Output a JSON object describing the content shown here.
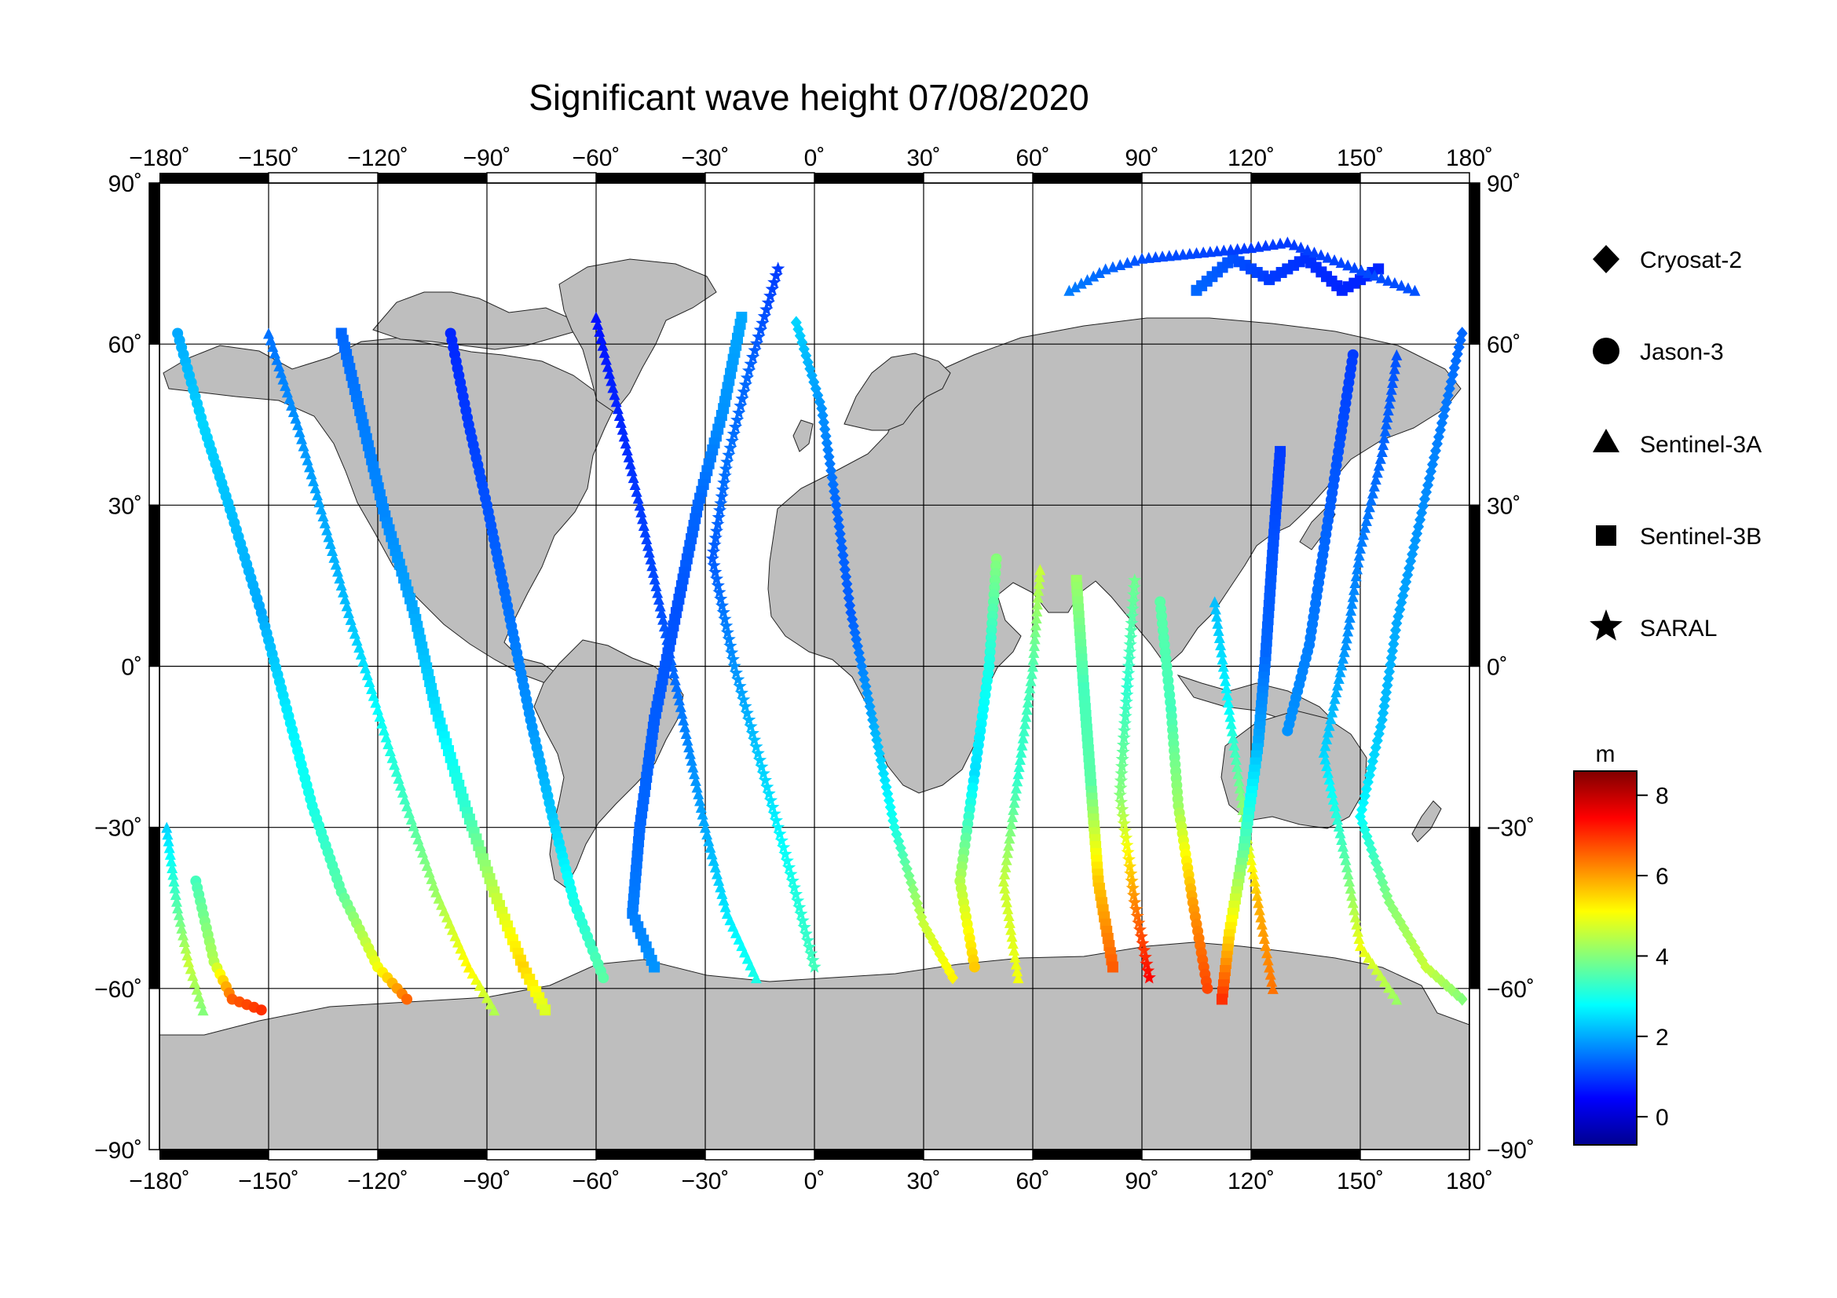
{
  "chart_data": {
    "type": "scatter",
    "title": "Significant wave height 07/08/2020",
    "projection": "equirectangular",
    "xlim": [
      -180,
      180
    ],
    "ylim": [
      -90,
      90
    ],
    "x_ticks": [
      "−180˚",
      "−150˚",
      "−120˚",
      "−90˚",
      "−60˚",
      "−30˚",
      "0˚",
      "30˚",
      "60˚",
      "90˚",
      "120˚",
      "150˚",
      "180˚"
    ],
    "x_tick_values": [
      -180,
      -150,
      -120,
      -90,
      -60,
      -30,
      0,
      30,
      60,
      90,
      120,
      150,
      180
    ],
    "y_ticks": [
      "90˚",
      "60˚",
      "30˚",
      "0˚",
      "−30˚",
      "−60˚",
      "−90˚"
    ],
    "y_tick_values": [
      90,
      60,
      30,
      0,
      -30,
      -60,
      -90
    ],
    "grid": true,
    "land_color": "#bebebe",
    "legend": {
      "placement": "right",
      "entries": [
        {
          "name": "Cryosat-2",
          "marker": "diamond"
        },
        {
          "name": "Jason-3",
          "marker": "circle"
        },
        {
          "name": "Sentinel-3A",
          "marker": "triangle"
        },
        {
          "name": "Sentinel-3B",
          "marker": "square"
        },
        {
          "name": "SARAL",
          "marker": "star"
        }
      ]
    },
    "colorbar": {
      "unit": "m",
      "range": [
        -0.7,
        8.6
      ],
      "ticks": [
        "8",
        "6",
        "4",
        "2",
        "0"
      ],
      "tick_values": [
        8,
        6,
        4,
        2,
        0
      ],
      "colormap": [
        "#00008f",
        "#0000ff",
        "#0080ff",
        "#00ffff",
        "#80ff80",
        "#ffff00",
        "#ff8000",
        "#ff0000",
        "#800000"
      ]
    },
    "tracks": [
      {
        "marker": "circle",
        "points": [
          [
            -175,
            62,
            2.0
          ],
          [
            -168,
            45,
            2.4
          ],
          [
            -160,
            28,
            2.2
          ],
          [
            -152,
            10,
            2.0
          ],
          [
            -145,
            -8,
            2.6
          ],
          [
            -138,
            -26,
            3.0
          ],
          [
            -130,
            -42,
            3.6
          ],
          [
            -120,
            -56,
            5.0
          ],
          [
            -112,
            -62,
            6.5
          ]
        ]
      },
      {
        "marker": "triangle",
        "points": [
          [
            -150,
            62,
            1.5
          ],
          [
            -142,
            45,
            1.8
          ],
          [
            -135,
            28,
            2.0
          ],
          [
            -128,
            10,
            2.2
          ],
          [
            -120,
            -8,
            2.8
          ],
          [
            -112,
            -26,
            3.4
          ],
          [
            -104,
            -42,
            4.2
          ],
          [
            -95,
            -56,
            5.2
          ],
          [
            -88,
            -64,
            4.4
          ]
        ]
      },
      {
        "marker": "square",
        "points": [
          [
            -130,
            62,
            1.4
          ],
          [
            -124,
            45,
            1.6
          ],
          [
            -118,
            28,
            1.7
          ],
          [
            -110,
            10,
            2.0
          ],
          [
            -104,
            -8,
            2.5
          ],
          [
            -96,
            -26,
            3.2
          ],
          [
            -88,
            -42,
            4.5
          ],
          [
            -80,
            -56,
            5.5
          ],
          [
            -74,
            -64,
            4.8
          ]
        ]
      },
      {
        "marker": "circle",
        "points": [
          [
            -100,
            62,
            0.8
          ],
          [
            -95,
            45,
            1.0
          ],
          [
            -90,
            30,
            1.2
          ],
          [
            -84,
            10,
            1.5
          ],
          [
            -78,
            -10,
            1.8
          ],
          [
            -72,
            -28,
            2.3
          ],
          [
            -66,
            -44,
            3.0
          ],
          [
            -58,
            -58,
            3.6
          ]
        ]
      },
      {
        "marker": "triangle",
        "points": [
          [
            -60,
            65,
            0.6
          ],
          [
            -54,
            48,
            0.8
          ],
          [
            -48,
            30,
            1.0
          ],
          [
            -42,
            10,
            1.2
          ],
          [
            -36,
            -10,
            1.6
          ],
          [
            -30,
            -30,
            2.0
          ],
          [
            -24,
            -46,
            2.6
          ],
          [
            -16,
            -58,
            3.0
          ]
        ]
      },
      {
        "marker": "square",
        "points": [
          [
            -20,
            65,
            2.0
          ],
          [
            -25,
            48,
            1.8
          ],
          [
            -32,
            30,
            1.4
          ],
          [
            -38,
            10,
            1.2
          ],
          [
            -44,
            -10,
            1.3
          ],
          [
            -48,
            -30,
            1.4
          ],
          [
            -50,
            -46,
            1.6
          ],
          [
            -44,
            -56,
            1.8
          ]
        ]
      },
      {
        "marker": "star",
        "points": [
          [
            -10,
            74,
            1.0
          ],
          [
            -18,
            55,
            1.4
          ],
          [
            -24,
            38,
            1.5
          ],
          [
            -28,
            20,
            1.3
          ],
          [
            -22,
            0,
            1.8
          ],
          [
            -14,
            -20,
            2.4
          ],
          [
            -6,
            -40,
            3.0
          ],
          [
            0,
            -56,
            3.4
          ]
        ]
      },
      {
        "marker": "diamond",
        "points": [
          [
            -5,
            64,
            2.4
          ],
          [
            2,
            48,
            1.8
          ],
          [
            6,
            30,
            1.4
          ],
          [
            10,
            10,
            1.3
          ],
          [
            16,
            -10,
            2.0
          ],
          [
            22,
            -30,
            3.0
          ],
          [
            30,
            -48,
            4.6
          ],
          [
            38,
            -58,
            5.2
          ]
        ]
      },
      {
        "marker": "circle",
        "points": [
          [
            50,
            20,
            4.0
          ],
          [
            48,
            0,
            3.0
          ],
          [
            44,
            -20,
            2.5
          ],
          [
            40,
            -40,
            4.4
          ],
          [
            44,
            -56,
            5.6
          ]
        ]
      },
      {
        "marker": "triangle",
        "points": [
          [
            62,
            18,
            4.6
          ],
          [
            60,
            0,
            3.5
          ],
          [
            56,
            -20,
            3.2
          ],
          [
            52,
            -40,
            4.6
          ],
          [
            56,
            -58,
            5.0
          ]
        ]
      },
      {
        "marker": "square",
        "points": [
          [
            72,
            16,
            4.2
          ],
          [
            74,
            -4,
            3.4
          ],
          [
            76,
            -22,
            3.6
          ],
          [
            78,
            -40,
            5.6
          ],
          [
            82,
            -56,
            6.6
          ]
        ]
      },
      {
        "marker": "star",
        "points": [
          [
            88,
            16,
            3.8
          ],
          [
            86,
            -4,
            3.2
          ],
          [
            84,
            -24,
            4.0
          ],
          [
            88,
            -44,
            6.2
          ],
          [
            92,
            -58,
            7.4
          ]
        ]
      },
      {
        "marker": "circle",
        "points": [
          [
            95,
            12,
            3.6
          ],
          [
            98,
            -8,
            3.4
          ],
          [
            100,
            -26,
            4.2
          ],
          [
            104,
            -44,
            6.0
          ],
          [
            108,
            -60,
            6.8
          ]
        ]
      },
      {
        "marker": "triangle",
        "points": [
          [
            110,
            12,
            2.2
          ],
          [
            114,
            -8,
            2.8
          ],
          [
            118,
            -28,
            4.2
          ],
          [
            122,
            -44,
            5.8
          ],
          [
            126,
            -60,
            6.4
          ]
        ]
      },
      {
        "marker": "square",
        "points": [
          [
            128,
            40,
            1.0
          ],
          [
            126,
            22,
            1.2
          ],
          [
            124,
            2,
            1.4
          ],
          [
            122,
            -14,
            2.0
          ],
          [
            118,
            -34,
            3.6
          ],
          [
            114,
            -50,
            5.4
          ],
          [
            112,
            -62,
            7.0
          ]
        ]
      },
      {
        "marker": "circle",
        "points": [
          [
            148,
            58,
            1.0
          ],
          [
            144,
            40,
            1.2
          ],
          [
            140,
            22,
            1.4
          ],
          [
            136,
            4,
            1.6
          ],
          [
            130,
            -12,
            1.8
          ]
        ]
      },
      {
        "marker": "triangle",
        "points": [
          [
            160,
            58,
            1.2
          ],
          [
            156,
            40,
            1.4
          ],
          [
            150,
            22,
            1.6
          ],
          [
            146,
            4,
            1.8
          ],
          [
            140,
            -16,
            2.4
          ],
          [
            146,
            -36,
            3.6
          ],
          [
            150,
            -52,
            5.0
          ],
          [
            160,
            -62,
            4.2
          ]
        ]
      },
      {
        "marker": "diamond",
        "points": [
          [
            178,
            62,
            1.4
          ],
          [
            172,
            44,
            1.6
          ],
          [
            166,
            26,
            1.8
          ],
          [
            160,
            8,
            2.0
          ],
          [
            156,
            -10,
            2.2
          ],
          [
            150,
            -28,
            2.8
          ],
          [
            158,
            -44,
            4.0
          ],
          [
            168,
            -56,
            4.6
          ],
          [
            178,
            -62,
            4.0
          ]
        ]
      },
      {
        "marker": "circle",
        "points": [
          [
            -170,
            -40,
            3.4
          ],
          [
            -165,
            -55,
            4.4
          ],
          [
            -160,
            -62,
            6.6
          ],
          [
            -152,
            -64,
            7.0
          ]
        ]
      },
      {
        "marker": "triangle",
        "points": [
          [
            -178,
            -30,
            2.4
          ],
          [
            -175,
            -45,
            3.6
          ],
          [
            -172,
            -55,
            4.6
          ],
          [
            -168,
            -64,
            4.0
          ]
        ]
      },
      {
        "marker": "square",
        "points": [
          [
            105,
            70,
            1.4
          ],
          [
            115,
            76,
            1.2
          ],
          [
            125,
            72,
            1.0
          ],
          [
            135,
            76,
            0.9
          ],
          [
            145,
            70,
            0.8
          ],
          [
            155,
            74,
            0.8
          ]
        ]
      },
      {
        "marker": "triangle",
        "points": [
          [
            70,
            70,
            1.6
          ],
          [
            80,
            74,
            1.4
          ],
          [
            90,
            76,
            1.2
          ],
          [
            120,
            78,
            1.0
          ],
          [
            130,
            79,
            1.0
          ],
          [
            165,
            70,
            1.2
          ]
        ]
      }
    ]
  }
}
